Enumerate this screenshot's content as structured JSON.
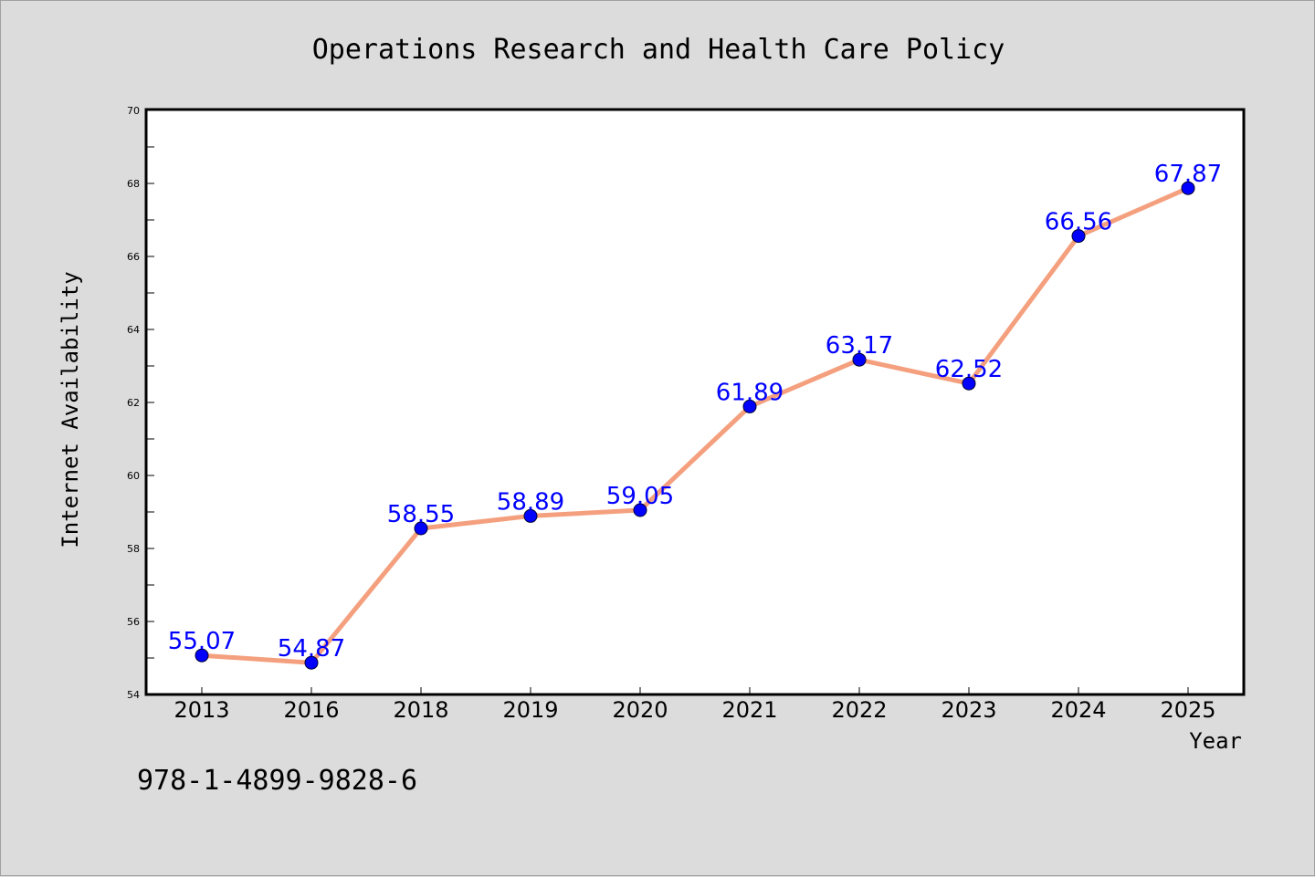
{
  "chart_data": {
    "type": "line",
    "title": "Operations Research and Health Care Policy",
    "xlabel": "Year",
    "ylabel": "Internet Availability",
    "categories": [
      "2013",
      "2016",
      "2018",
      "2019",
      "2020",
      "2021",
      "2022",
      "2023",
      "2024",
      "2025"
    ],
    "values": [
      55.07,
      54.87,
      58.55,
      58.89,
      59.05,
      61.89,
      63.17,
      62.52,
      66.56,
      67.87
    ],
    "data_labels": [
      "55.07",
      "54.87",
      "58.55",
      "58.89",
      "59.05",
      "61.89",
      "63.17",
      "62.52",
      "66.56",
      "67.87"
    ],
    "ylim": [
      54,
      70
    ],
    "yticks": [
      54,
      56,
      58,
      60,
      62,
      64,
      66,
      68,
      70
    ],
    "grid": false,
    "legend": "none",
    "line_color": "#f4a07e",
    "marker_color": "#0000ff",
    "label_color": "#0000ff"
  },
  "annotation": "978-1-4899-9828-6"
}
